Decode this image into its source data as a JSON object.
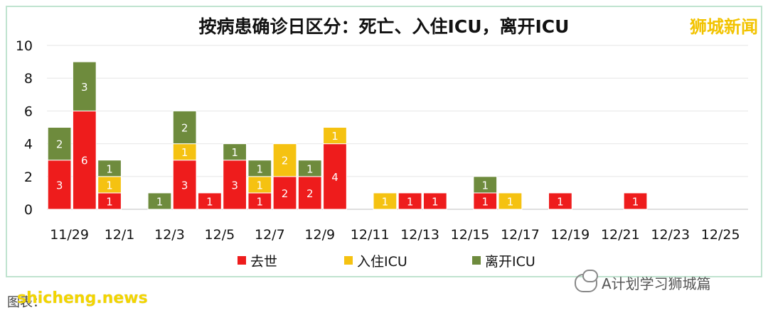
{
  "header": {
    "title": "按病患确诊日区分：死亡、入住ICU，离开ICU",
    "brand": "狮城新闻"
  },
  "footer": {
    "source": "图表：",
    "wechat": "A计划学习狮城篇",
    "watermark": "shicheng.news"
  },
  "chart_data": {
    "type": "bar",
    "stacked": true,
    "title": "按病患确诊日区分：死亡、入住ICU，离开ICU",
    "xlabel": "",
    "ylabel": "",
    "ylim": [
      0,
      10
    ],
    "yticks": [
      0,
      2,
      4,
      6,
      8,
      10
    ],
    "grid": true,
    "legend_position": "bottom",
    "categories": [
      "11/29",
      "11/30",
      "12/1",
      "12/2",
      "12/3",
      "12/4",
      "12/5",
      "12/6",
      "12/7",
      "12/8",
      "12/9",
      "12/10",
      "12/11",
      "12/12",
      "12/13",
      "12/14",
      "12/15",
      "12/16",
      "12/17",
      "12/18",
      "12/19",
      "12/20",
      "12/21",
      "12/22",
      "12/23",
      "12/24",
      "12/25",
      "12/26"
    ],
    "xtick_labels": [
      "11/29",
      "12/1",
      "12/3",
      "12/5",
      "12/7",
      "12/9",
      "12/11",
      "12/13",
      "12/15",
      "12/17",
      "12/19",
      "12/21",
      "12/23",
      "12/25"
    ],
    "series": [
      {
        "name": "去世",
        "color": "#ee1c1c",
        "values": [
          3,
          6,
          1,
          0,
          0,
          3,
          1,
          3,
          1,
          2,
          2,
          4,
          0,
          0,
          1,
          1,
          0,
          1,
          0,
          0,
          1,
          0,
          0,
          1,
          0,
          0,
          0,
          0
        ]
      },
      {
        "name": "入住ICU",
        "color": "#f5c211",
        "values": [
          0,
          0,
          1,
          0,
          0,
          1,
          0,
          0,
          1,
          2,
          0,
          1,
          0,
          1,
          0,
          0,
          0,
          0,
          1,
          0,
          0,
          0,
          0,
          0,
          0,
          0,
          0,
          0
        ]
      },
      {
        "name": "离开ICU",
        "color": "#6e8b3d",
        "values": [
          2,
          3,
          1,
          0,
          1,
          2,
          0,
          1,
          1,
          0,
          1,
          0,
          0,
          0,
          0,
          0,
          0,
          1,
          0,
          0,
          0,
          0,
          0,
          0,
          0,
          0,
          0,
          0
        ]
      }
    ]
  }
}
